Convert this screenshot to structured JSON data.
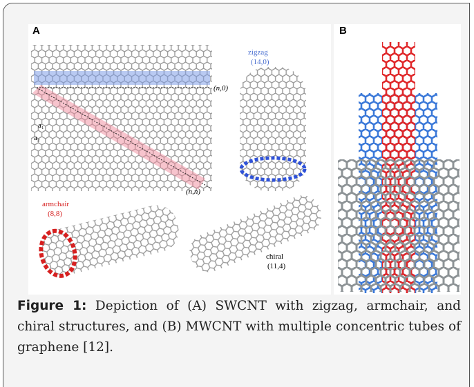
{
  "figure": {
    "panel_a": {
      "label": "A",
      "lattice": {
        "a1": "a₁",
        "a2": "a₂",
        "zigzag_vector": "(n,0)",
        "armchair_vector": "(n,n)"
      },
      "zigzag": {
        "name": "zigzag",
        "index": "(14,0)"
      },
      "armchair": {
        "name": "armchair",
        "index": "(8,8)"
      },
      "chiral": {
        "name": "chiral",
        "index": "(11,4)"
      }
    },
    "panel_b": {
      "label": "B"
    }
  },
  "caption": {
    "label": "Figure 1:",
    "text": "Depiction of (A) SWCNT with zigzag, armchair, and chiral structures, and (B) MWCNT with multiple concentric tubes of graphene [12]."
  }
}
